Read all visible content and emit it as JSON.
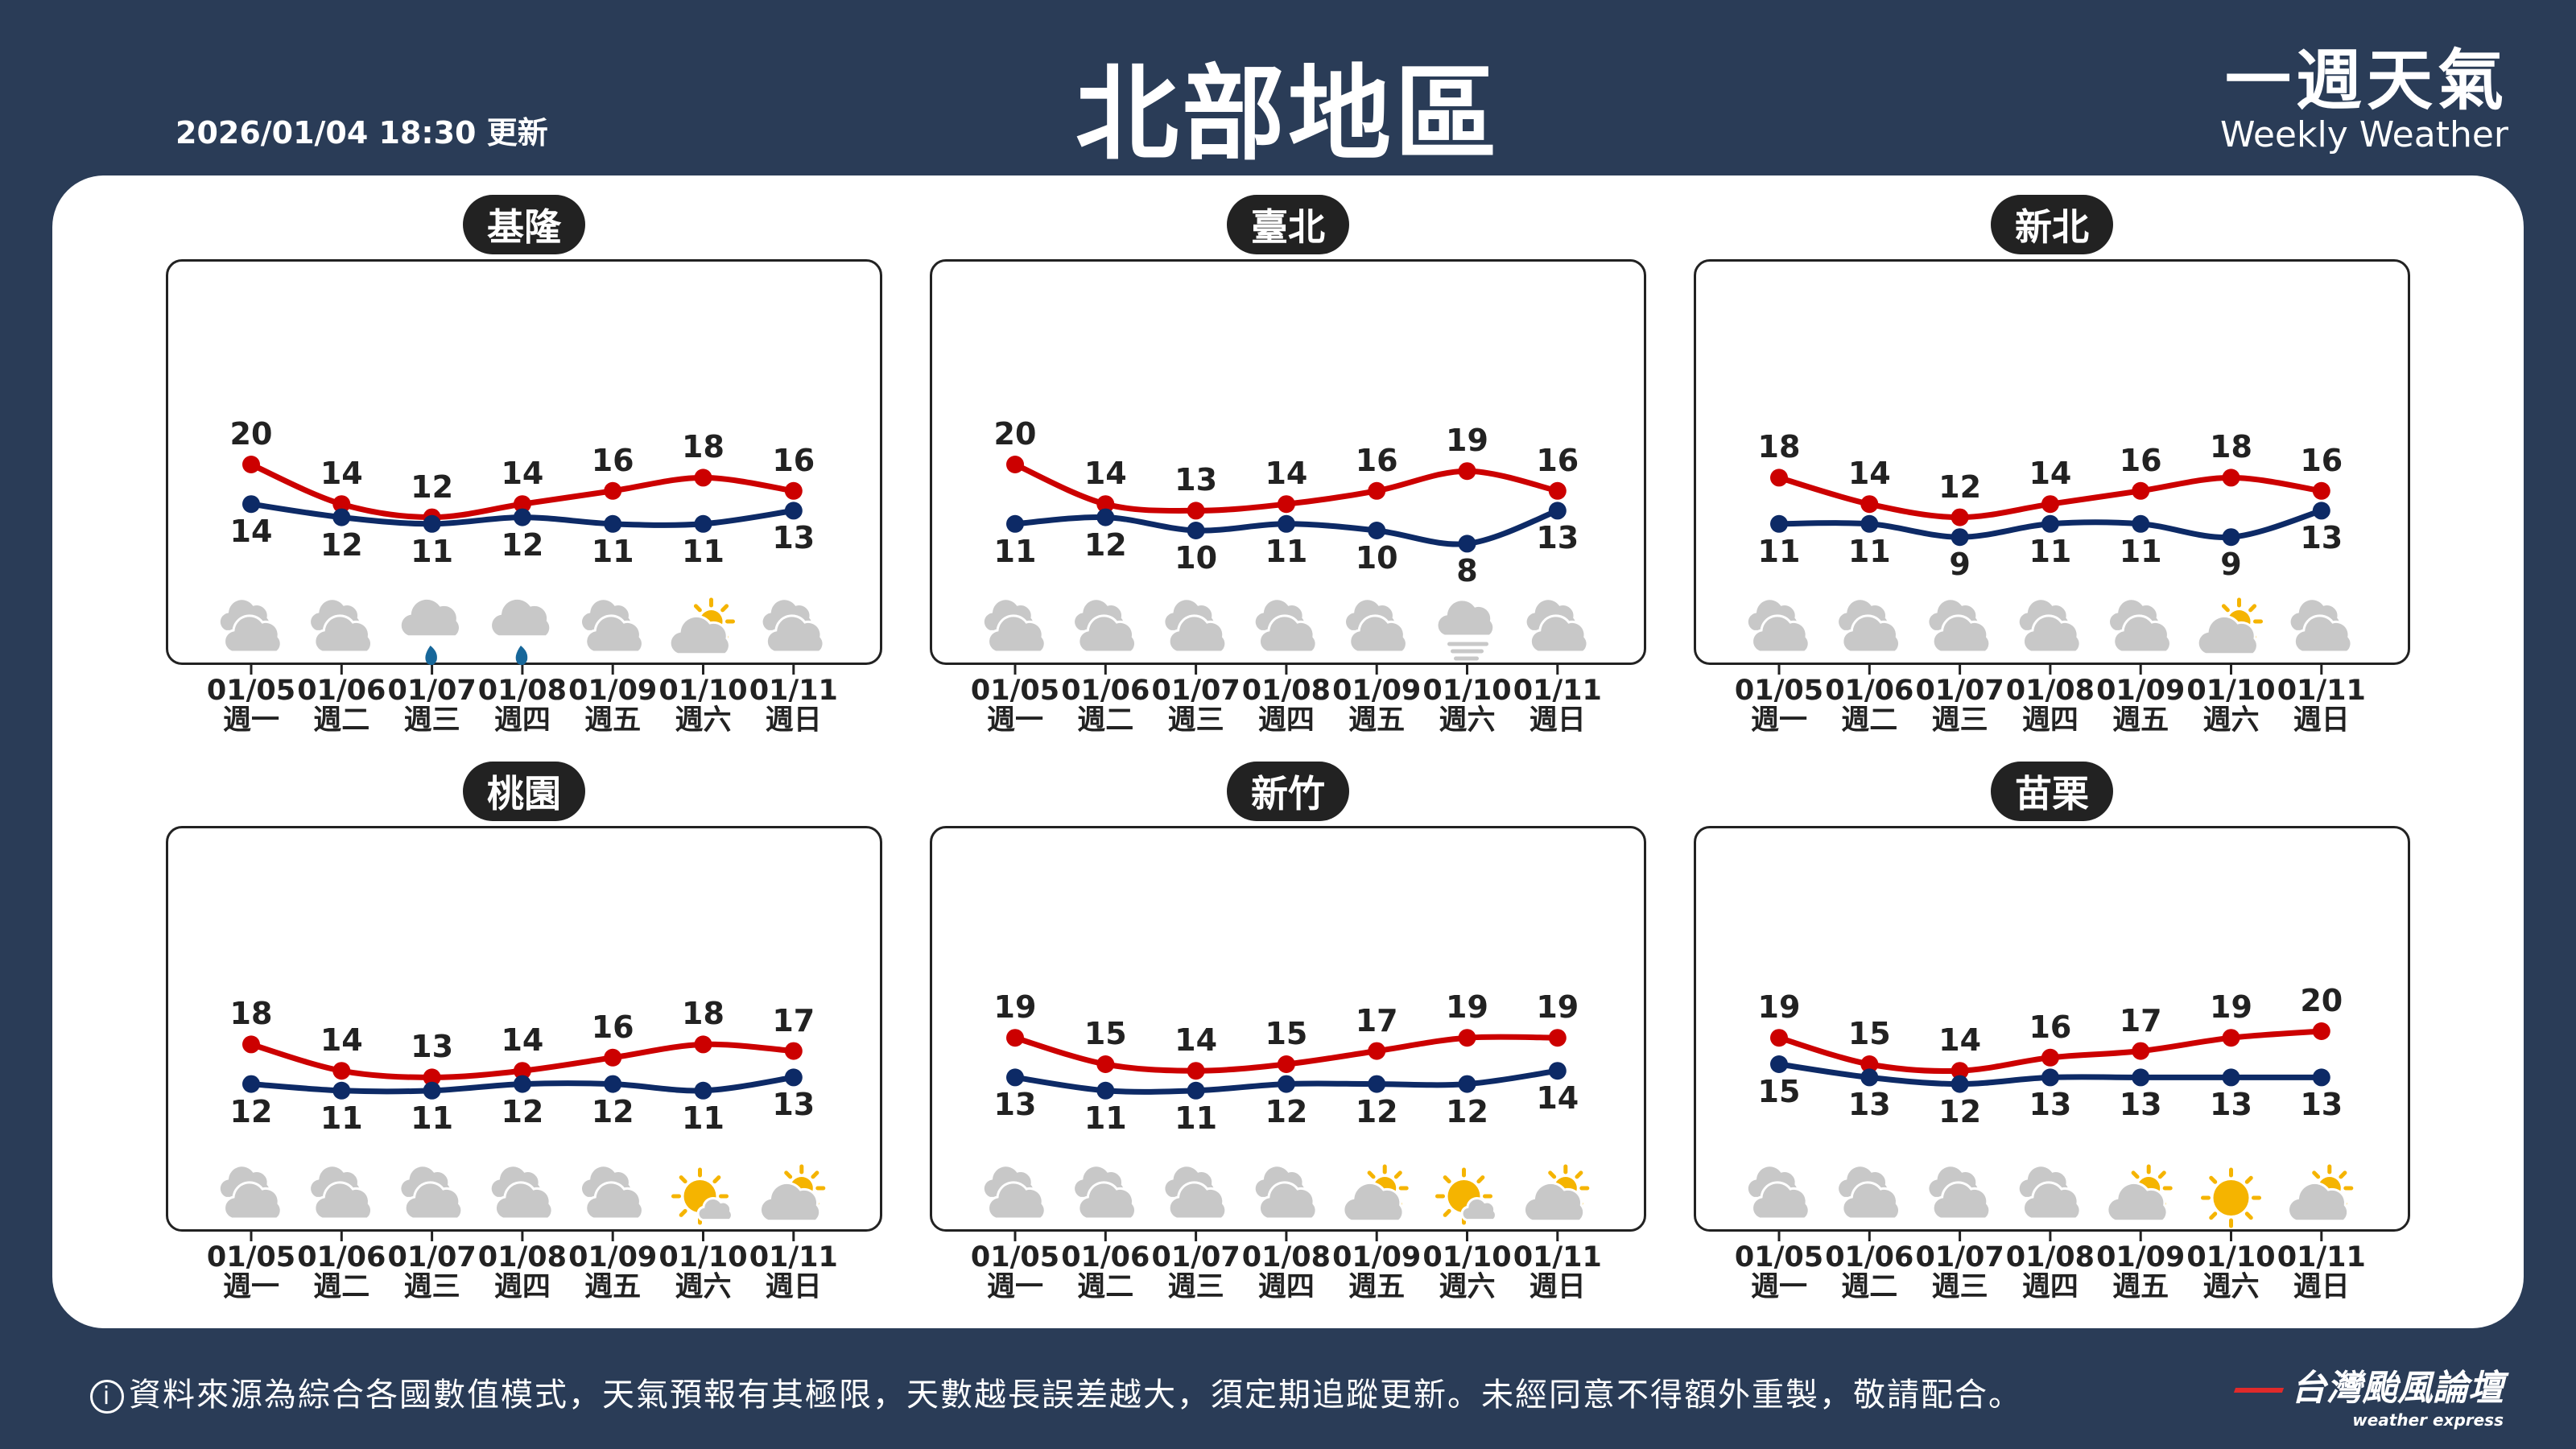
{
  "header": {
    "updated": "2026/01/04 18:30 更新",
    "title": "北部地區",
    "brand_zh": "一週天氣",
    "brand_en": "Weekly Weather"
  },
  "colors": {
    "background": "#2a3c57",
    "high": "#cc0000",
    "low": "#0d2a66",
    "cloud": "#c8c8c8",
    "sun": "#f5b400",
    "rain": "#17679a"
  },
  "dates": [
    "01/05",
    "01/06",
    "01/07",
    "01/08",
    "01/09",
    "01/10",
    "01/11"
  ],
  "weekdays": [
    "週一",
    "週二",
    "週三",
    "週四",
    "週五",
    "週六",
    "週日"
  ],
  "chart_data": [
    {
      "type": "line",
      "title": "基隆",
      "series": [
        {
          "values": [
            20,
            14,
            12,
            14,
            16,
            18,
            16
          ]
        },
        {
          "values": [
            14,
            12,
            11,
            12,
            11,
            11,
            13
          ]
        }
      ],
      "icons": [
        "cloudy",
        "cloudy",
        "rain",
        "rain",
        "cloudy",
        "partly-sunny",
        "cloudy"
      ]
    },
    {
      "type": "line",
      "title": "臺北",
      "series": [
        {
          "values": [
            20,
            14,
            13,
            14,
            16,
            19,
            16
          ]
        },
        {
          "values": [
            11,
            12,
            10,
            11,
            10,
            8,
            13
          ]
        }
      ],
      "icons": [
        "cloudy",
        "cloudy",
        "cloudy",
        "cloudy",
        "cloudy",
        "fog",
        "cloudy"
      ]
    },
    {
      "type": "line",
      "title": "新北",
      "series": [
        {
          "values": [
            18,
            14,
            12,
            14,
            16,
            18,
            16
          ]
        },
        {
          "values": [
            11,
            11,
            9,
            11,
            11,
            9,
            13
          ]
        }
      ],
      "icons": [
        "cloudy",
        "cloudy",
        "cloudy",
        "cloudy",
        "cloudy",
        "partly-sunny",
        "cloudy"
      ]
    },
    {
      "type": "line",
      "title": "桃園",
      "series": [
        {
          "values": [
            18,
            14,
            13,
            14,
            16,
            18,
            17
          ]
        },
        {
          "values": [
            12,
            11,
            11,
            12,
            12,
            11,
            13
          ]
        }
      ],
      "icons": [
        "cloudy",
        "cloudy",
        "cloudy",
        "cloudy",
        "cloudy",
        "mostly-sunny",
        "partly-sunny"
      ]
    },
    {
      "type": "line",
      "title": "新竹",
      "series": [
        {
          "values": [
            19,
            15,
            14,
            15,
            17,
            19,
            19
          ]
        },
        {
          "values": [
            13,
            11,
            11,
            12,
            12,
            12,
            14
          ]
        }
      ],
      "icons": [
        "cloudy",
        "cloudy",
        "cloudy",
        "cloudy",
        "partly-sunny",
        "mostly-sunny",
        "partly-sunny"
      ]
    },
    {
      "type": "line",
      "title": "苗栗",
      "series": [
        {
          "values": [
            19,
            15,
            14,
            16,
            17,
            19,
            20
          ]
        },
        {
          "values": [
            15,
            13,
            12,
            13,
            13,
            13,
            13
          ]
        }
      ],
      "icons": [
        "cloudy",
        "cloudy",
        "cloudy",
        "cloudy",
        "partly-sunny",
        "sunny",
        "partly-sunny"
      ]
    }
  ],
  "footer": {
    "info_icon": "info-icon",
    "text": "資料來源為綜合各國數值模式，天氣預報有其極限，天數越長誤差越大，須定期追蹤更新。未經同意不得額外重製，敬請配合。",
    "logo_zh": "台灣颱風論壇",
    "logo_en": "weather express"
  }
}
